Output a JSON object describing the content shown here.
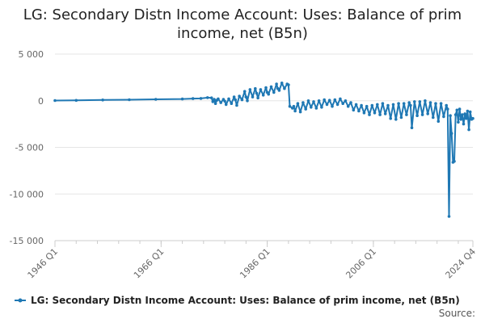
{
  "chart_data": {
    "type": "line",
    "title_line1": "LG: Secondary Distn Income Account: Uses: Balance of prim",
    "title_line2": "income, net (B5n)",
    "xlabel": "",
    "ylabel": "",
    "ylim": [
      -15000,
      5000
    ],
    "y_ticks": [
      {
        "value": 5000,
        "label": "5 000"
      },
      {
        "value": 0,
        "label": "0"
      },
      {
        "value": -5000,
        "label": "-5 000"
      },
      {
        "value": -10000,
        "label": "-10 000"
      },
      {
        "value": -15000,
        "label": "-15 000"
      }
    ],
    "x_range": [
      "1946 Q1",
      "2024 Q4"
    ],
    "x_ticks": [
      "1946 Q1",
      "1966 Q1",
      "1986 Q1",
      "2006 Q1",
      "2024 Q4"
    ],
    "grid": "horizontal",
    "legend_position": "bottom",
    "colors": {
      "series": "#1f78b4",
      "grid": "#e6e6e6",
      "axis": "#cccccc"
    },
    "series": [
      {
        "name": "LG: Secondary Distn Income Account: Uses: Balance of prim income, net (B5n)",
        "points": [
          [
            "1946 Q1",
            20
          ],
          [
            "1950 Q1",
            40
          ],
          [
            "1955 Q1",
            80
          ],
          [
            "1960 Q1",
            110
          ],
          [
            "1965 Q1",
            150
          ],
          [
            "1970 Q1",
            190
          ],
          [
            "1972 Q1",
            230
          ],
          [
            "1973 Q3",
            250
          ],
          [
            "1974 Q4",
            330
          ],
          [
            "1975 Q3",
            310
          ],
          [
            "1975 Q4",
            -100
          ],
          [
            "1976 Q1",
            150
          ],
          [
            "1976 Q2",
            -300
          ],
          [
            "1976 Q3",
            50
          ],
          [
            "1976 Q4",
            200
          ],
          [
            "1977 Q2",
            -200
          ],
          [
            "1977 Q4",
            150
          ],
          [
            "1978 Q1",
            -50
          ],
          [
            "1978 Q2",
            -400
          ],
          [
            "1978 Q4",
            200
          ],
          [
            "1979 Q2",
            -300
          ],
          [
            "1979 Q4",
            400
          ],
          [
            "1980 Q1",
            100
          ],
          [
            "1980 Q2",
            -500
          ],
          [
            "1980 Q4",
            500
          ],
          [
            "1981 Q2",
            100
          ],
          [
            "1981 Q4",
            1000
          ],
          [
            "1982 Q1",
            400
          ],
          [
            "1982 Q2",
            0
          ],
          [
            "1982 Q4",
            1200
          ],
          [
            "1983 Q2",
            400
          ],
          [
            "1983 Q4",
            1300
          ],
          [
            "1984 Q1",
            800
          ],
          [
            "1984 Q2",
            300
          ],
          [
            "1984 Q4",
            1200
          ],
          [
            "1985 Q2",
            600
          ],
          [
            "1985 Q4",
            1400
          ],
          [
            "1986 Q1",
            900
          ],
          [
            "1986 Q2",
            700
          ],
          [
            "1986 Q4",
            1500
          ],
          [
            "1987 Q2",
            900
          ],
          [
            "1987 Q4",
            1800
          ],
          [
            "1988 Q1",
            1300
          ],
          [
            "1988 Q2",
            1100
          ],
          [
            "1988 Q4",
            1900
          ],
          [
            "1989 Q2",
            1300
          ],
          [
            "1989 Q4",
            1800
          ],
          [
            "1990 Q1",
            1700
          ],
          [
            "1990 Q2",
            -600
          ],
          [
            "1990 Q4",
            -800
          ],
          [
            "1991 Q1",
            -600
          ],
          [
            "1991 Q2",
            -1100
          ],
          [
            "1991 Q4",
            -300
          ],
          [
            "1992 Q2",
            -1200
          ],
          [
            "1992 Q4",
            -200
          ],
          [
            "1993 Q2",
            -900
          ],
          [
            "1993 Q4",
            0
          ],
          [
            "1994 Q2",
            -700
          ],
          [
            "1994 Q4",
            -100
          ],
          [
            "1995 Q2",
            -800
          ],
          [
            "1995 Q4",
            0
          ],
          [
            "1996 Q2",
            -700
          ],
          [
            "1996 Q4",
            100
          ],
          [
            "1997 Q2",
            -400
          ],
          [
            "1997 Q4",
            50
          ],
          [
            "1998 Q2",
            -600
          ],
          [
            "1998 Q4",
            100
          ],
          [
            "1999 Q2",
            -400
          ],
          [
            "1999 Q4",
            200
          ],
          [
            "2000 Q2",
            -300
          ],
          [
            "2000 Q4",
            0
          ],
          [
            "2001 Q2",
            -600
          ],
          [
            "2001 Q4",
            -200
          ],
          [
            "2002 Q2",
            -1000
          ],
          [
            "2002 Q4",
            -400
          ],
          [
            "2003 Q2",
            -1100
          ],
          [
            "2003 Q4",
            -500
          ],
          [
            "2004 Q2",
            -1300
          ],
          [
            "2004 Q4",
            -600
          ],
          [
            "2005 Q2",
            -1500
          ],
          [
            "2005 Q4",
            -500
          ],
          [
            "2006 Q2",
            -1300
          ],
          [
            "2006 Q4",
            -400
          ],
          [
            "2007 Q2",
            -1500
          ],
          [
            "2007 Q4",
            -300
          ],
          [
            "2008 Q2",
            -1400
          ],
          [
            "2008 Q4",
            -500
          ],
          [
            "2009 Q2",
            -1900
          ],
          [
            "2009 Q4",
            -400
          ],
          [
            "2010 Q2",
            -2000
          ],
          [
            "2010 Q4",
            -300
          ],
          [
            "2011 Q2",
            -1800
          ],
          [
            "2011 Q4",
            -300
          ],
          [
            "2012 Q2",
            -1500
          ],
          [
            "2012 Q4",
            -200
          ],
          [
            "2013 Q1",
            -500
          ],
          [
            "2013 Q2",
            -2900
          ],
          [
            "2013 Q4",
            -100
          ],
          [
            "2014 Q2",
            -1600
          ],
          [
            "2014 Q4",
            -100
          ],
          [
            "2015 Q2",
            -1500
          ],
          [
            "2015 Q4",
            0
          ],
          [
            "2016 Q2",
            -1400
          ],
          [
            "2016 Q4",
            -200
          ],
          [
            "2017 Q2",
            -1800
          ],
          [
            "2017 Q4",
            -300
          ],
          [
            "2018 Q2",
            -2200
          ],
          [
            "2018 Q4",
            -300
          ],
          [
            "2019 Q2",
            -1700
          ],
          [
            "2019 Q4",
            -500
          ],
          [
            "2020 Q1",
            -900
          ],
          [
            "2020 Q2",
            -12400
          ],
          [
            "2020 Q3",
            -1600
          ],
          [
            "2020 Q4",
            -3500
          ],
          [
            "2021 Q1",
            -6600
          ],
          [
            "2021 Q2",
            -6500
          ],
          [
            "2021 Q3",
            -1500
          ],
          [
            "2021 Q4",
            -1000
          ],
          [
            "2022 Q1",
            -2300
          ],
          [
            "2022 Q2",
            -900
          ],
          [
            "2022 Q3",
            -2000
          ],
          [
            "2022 Q4",
            -1500
          ],
          [
            "2023 Q1",
            -2500
          ],
          [
            "2023 Q2",
            -1400
          ],
          [
            "2023 Q3",
            -1900
          ],
          [
            "2023 Q4",
            -1100
          ],
          [
            "2024 Q1",
            -3100
          ],
          [
            "2024 Q2",
            -1200
          ],
          [
            "2024 Q3",
            -2000
          ],
          [
            "2024 Q4",
            -1900
          ]
        ]
      }
    ]
  },
  "source": {
    "label": "Source:"
  }
}
